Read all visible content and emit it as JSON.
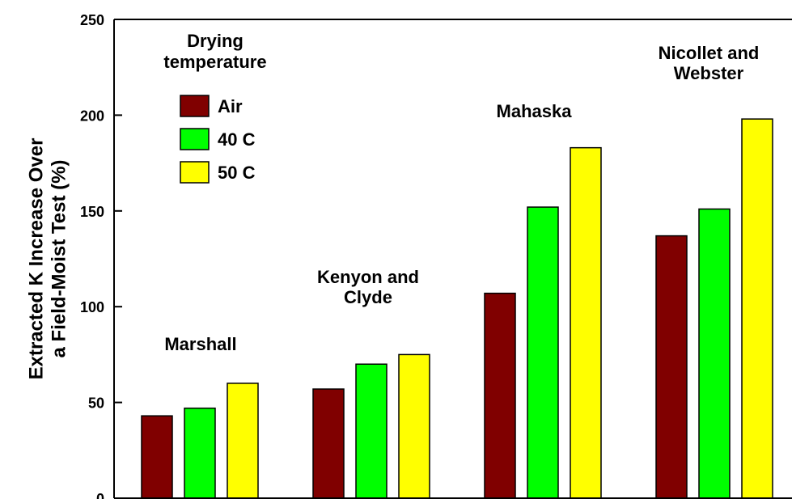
{
  "chart_data": {
    "type": "bar",
    "title": "",
    "xlabel": "",
    "ylabel": "Extracted K Increase Over a Field-Moist Test (%)",
    "ylabel_lines": [
      "Extracted K Increase Over",
      "a Field-Moist Test (%)"
    ],
    "ylim": [
      0,
      250
    ],
    "yticks": [
      0,
      50,
      100,
      150,
      200,
      250
    ],
    "grid": false,
    "categories": [
      "Marshall",
      "Kenyon and Clyde",
      "Mahaska",
      "Nicollet and Webster"
    ],
    "category_label_lines": [
      [
        "Marshall"
      ],
      [
        "Kenyon and",
        "Clyde"
      ],
      [
        "Mahaska"
      ],
      [
        "Nicollet and",
        "Webster"
      ]
    ],
    "series": [
      {
        "name": "Air",
        "values": [
          43,
          57,
          107,
          137
        ]
      },
      {
        "name": "40 C",
        "values": [
          47,
          70,
          152,
          151
        ]
      },
      {
        "name": "50 C",
        "values": [
          60,
          75,
          183,
          198
        ]
      }
    ],
    "legend": {
      "title_lines": [
        "Drying",
        "temperature"
      ],
      "placement": "top-left"
    }
  },
  "colors": {
    "series": [
      "#800000",
      "#00ff00",
      "#ffff00"
    ],
    "axis": "#000000"
  }
}
